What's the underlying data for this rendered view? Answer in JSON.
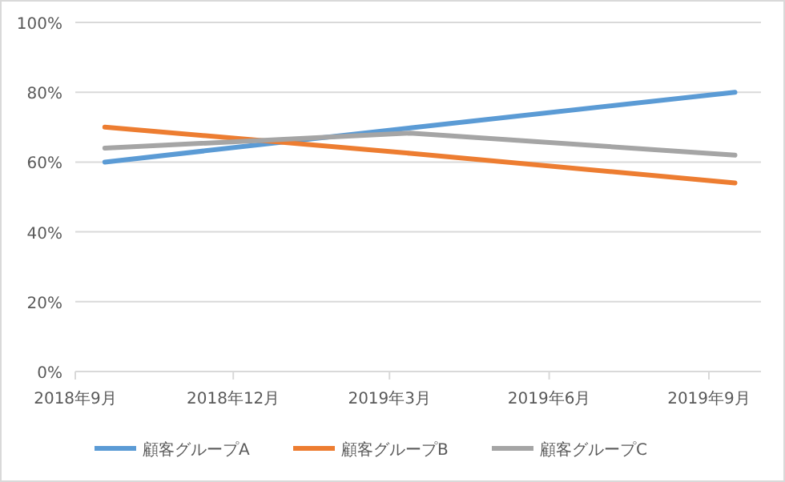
{
  "chart_data": {
    "type": "line",
    "x": [
      "2018-09-18",
      "2019-03-13",
      "2019-09-16"
    ],
    "series": [
      {
        "name": "顧客グループA",
        "color": "#5b9bd5",
        "values": [
          60,
          69.8,
          80
        ]
      },
      {
        "name": "顧客グループB",
        "color": "#ed7d31",
        "values": [
          70,
          62.5,
          54
        ]
      },
      {
        "name": "顧客グループC",
        "color": "#a5a5a5",
        "values": [
          64,
          68.3,
          62
        ]
      }
    ],
    "xlim": [
      "2018-09-01",
      "2019-10-01"
    ],
    "xticks": [
      {
        "value": "2018-09-01",
        "label": "2018年9月"
      },
      {
        "value": "2018-12-01",
        "label": "2018年12月"
      },
      {
        "value": "2019-03-01",
        "label": "2019年3月"
      },
      {
        "value": "2019-06-01",
        "label": "2019年6月"
      },
      {
        "value": "2019-09-01",
        "label": "2019年9月"
      }
    ],
    "ylim": [
      0,
      100
    ],
    "yticks": [
      {
        "value": 0,
        "label": "0%"
      },
      {
        "value": 20,
        "label": "20%"
      },
      {
        "value": 40,
        "label": "40%"
      },
      {
        "value": 60,
        "label": "60%"
      },
      {
        "value": 80,
        "label": "80%"
      },
      {
        "value": 100,
        "label": "100%"
      }
    ],
    "grid": "y",
    "legend": "bottom",
    "marker": "none",
    "line_style": "solid"
  }
}
